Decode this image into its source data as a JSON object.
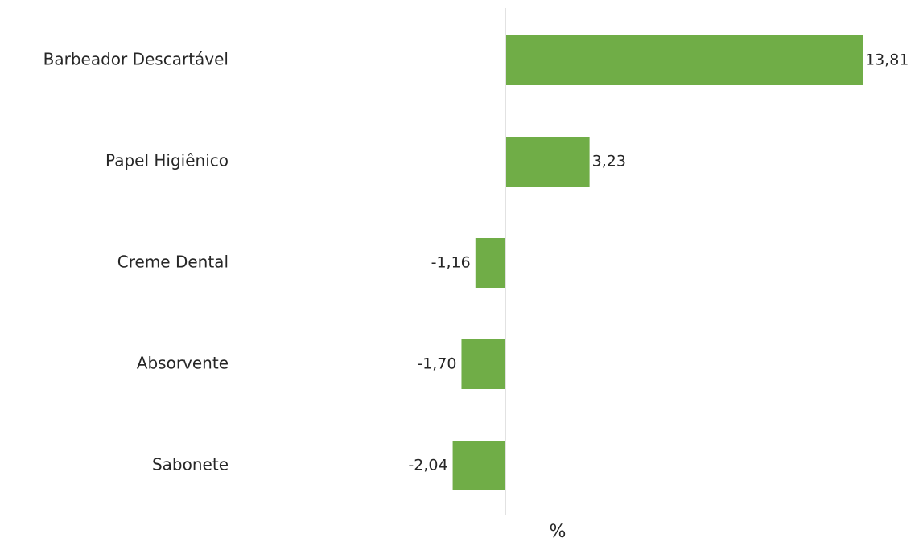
{
  "chart_data": {
    "type": "bar",
    "orientation": "horizontal",
    "categories": [
      "Barbeador Descartável",
      "Papel Higiênico",
      "Creme Dental",
      "Absorvente",
      "Sabonete"
    ],
    "values": [
      13.81,
      3.23,
      -1.16,
      -1.7,
      -2.04
    ],
    "value_labels": [
      "13,81",
      "3,23",
      "-1,16",
      "-1,70",
      "-2,04"
    ],
    "xlabel": "%",
    "ylabel": "",
    "title": "",
    "legend": "none",
    "grid": false,
    "bar_color": "#70AD47",
    "axis_color": "#D9D9D9"
  }
}
